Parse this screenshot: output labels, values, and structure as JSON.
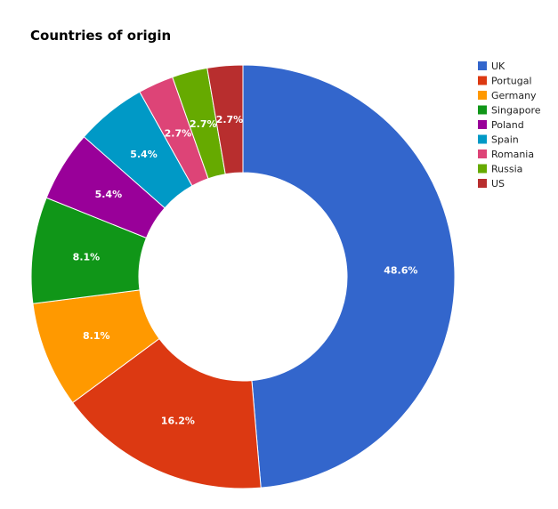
{
  "chart_data": {
    "type": "pie",
    "title": "Countries of origin",
    "donut": true,
    "legend_position": "right",
    "categories": [
      "UK",
      "Portugal",
      "Germany",
      "Singapore",
      "Poland",
      "Spain",
      "Romania",
      "Russia",
      "US"
    ],
    "values": [
      48.6,
      16.2,
      8.1,
      8.1,
      5.4,
      5.4,
      2.7,
      2.7,
      2.7
    ],
    "labels": [
      "48.6%",
      "16.2%",
      "8.1%",
      "8.1%",
      "5.4%",
      "5.4%",
      "2.7%",
      "2.7%",
      "2.7%"
    ],
    "colors": [
      "#3366cc",
      "#dc3912",
      "#ff9900",
      "#109618",
      "#990099",
      "#0099c6",
      "#dd4477",
      "#66aa00",
      "#b82e2e"
    ]
  }
}
